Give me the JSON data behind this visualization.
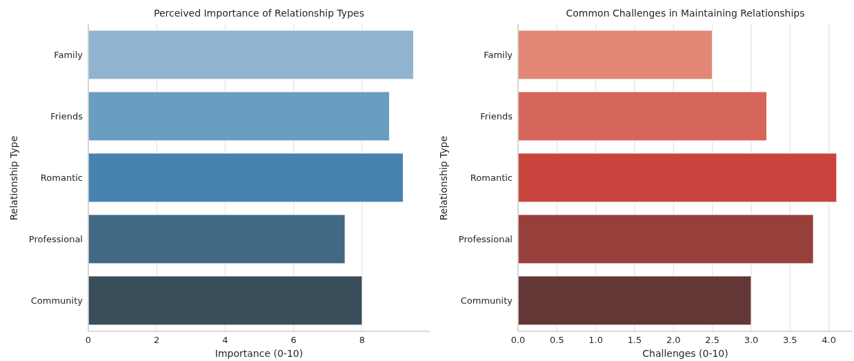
{
  "chart_data": [
    {
      "type": "bar",
      "orientation": "horizontal",
      "title": "Perceived Importance of Relationship Types",
      "xlabel": "Importance (0-10)",
      "ylabel": "Relationship Type",
      "categories": [
        "Family",
        "Friends",
        "Romantic",
        "Professional",
        "Community"
      ],
      "values": [
        9.5,
        8.8,
        9.2,
        7.5,
        8.0
      ],
      "colors": [
        "#90b4d0",
        "#6a9ec1",
        "#4883b0",
        "#416885",
        "#3a4d5b"
      ],
      "xlim": [
        0,
        9.975
      ],
      "xticks": [
        0,
        2,
        4,
        6,
        8
      ],
      "grid": "x"
    },
    {
      "type": "bar",
      "orientation": "horizontal",
      "title": "Common Challenges in Maintaining Relationships",
      "xlabel": "Challenges (0-10)",
      "ylabel": "Relationship Type",
      "categories": [
        "Family",
        "Friends",
        "Romantic",
        "Professional",
        "Community"
      ],
      "values": [
        2.5,
        3.2,
        4.1,
        3.8,
        3.0
      ],
      "colors": [
        "#e28776",
        "#d6665b",
        "#c9443e",
        "#973f3b",
        "#643737"
      ],
      "xlim": [
        0,
        4.305
      ],
      "xticks": [
        {
          "value": 0,
          "label": "0.0"
        },
        {
          "value": 0.5,
          "label": "0.5"
        },
        {
          "value": 1,
          "label": "1.0"
        },
        {
          "value": 1.5,
          "label": "1.5"
        },
        {
          "value": 2,
          "label": "2.0"
        },
        {
          "value": 2.5,
          "label": "2.5"
        },
        {
          "value": 3,
          "label": "3.0"
        },
        {
          "value": 3.5,
          "label": "3.5"
        },
        {
          "value": 4,
          "label": "4.0"
        }
      ],
      "grid": "x"
    }
  ]
}
